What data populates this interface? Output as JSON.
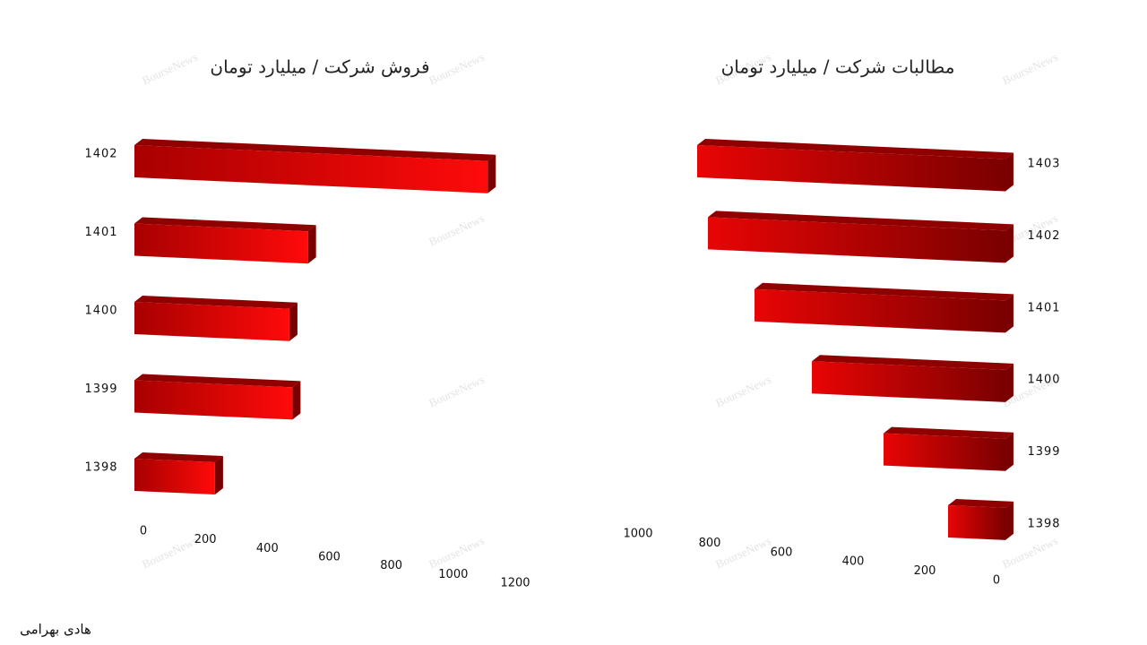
{
  "chart_data": [
    {
      "type": "bar",
      "title": "فروش شرکت / میلیارد تومان",
      "categories": [
        "1398",
        "1399",
        "1400",
        "1401",
        "1402"
      ],
      "values": [
        260,
        510,
        500,
        560,
        1140
      ],
      "color": "#e00000",
      "xlim": [
        0,
        1200
      ],
      "xticks": [
        0,
        200,
        400,
        600,
        800,
        1000,
        1200
      ],
      "reversed": false
    },
    {
      "type": "bar",
      "title": "مطالبات شرکت / میلیارد تومان",
      "categories": [
        "1398",
        "1399",
        "1400",
        "1401",
        "1402",
        "1403"
      ],
      "values": [
        160,
        340,
        540,
        700,
        830,
        860
      ],
      "color": "#e00000",
      "xlim": [
        0,
        1000
      ],
      "xticks": [
        0,
        200,
        400,
        600,
        800,
        1000
      ],
      "reversed": true
    }
  ],
  "author": "هادی بهرامی",
  "watermark": "BourseNews"
}
